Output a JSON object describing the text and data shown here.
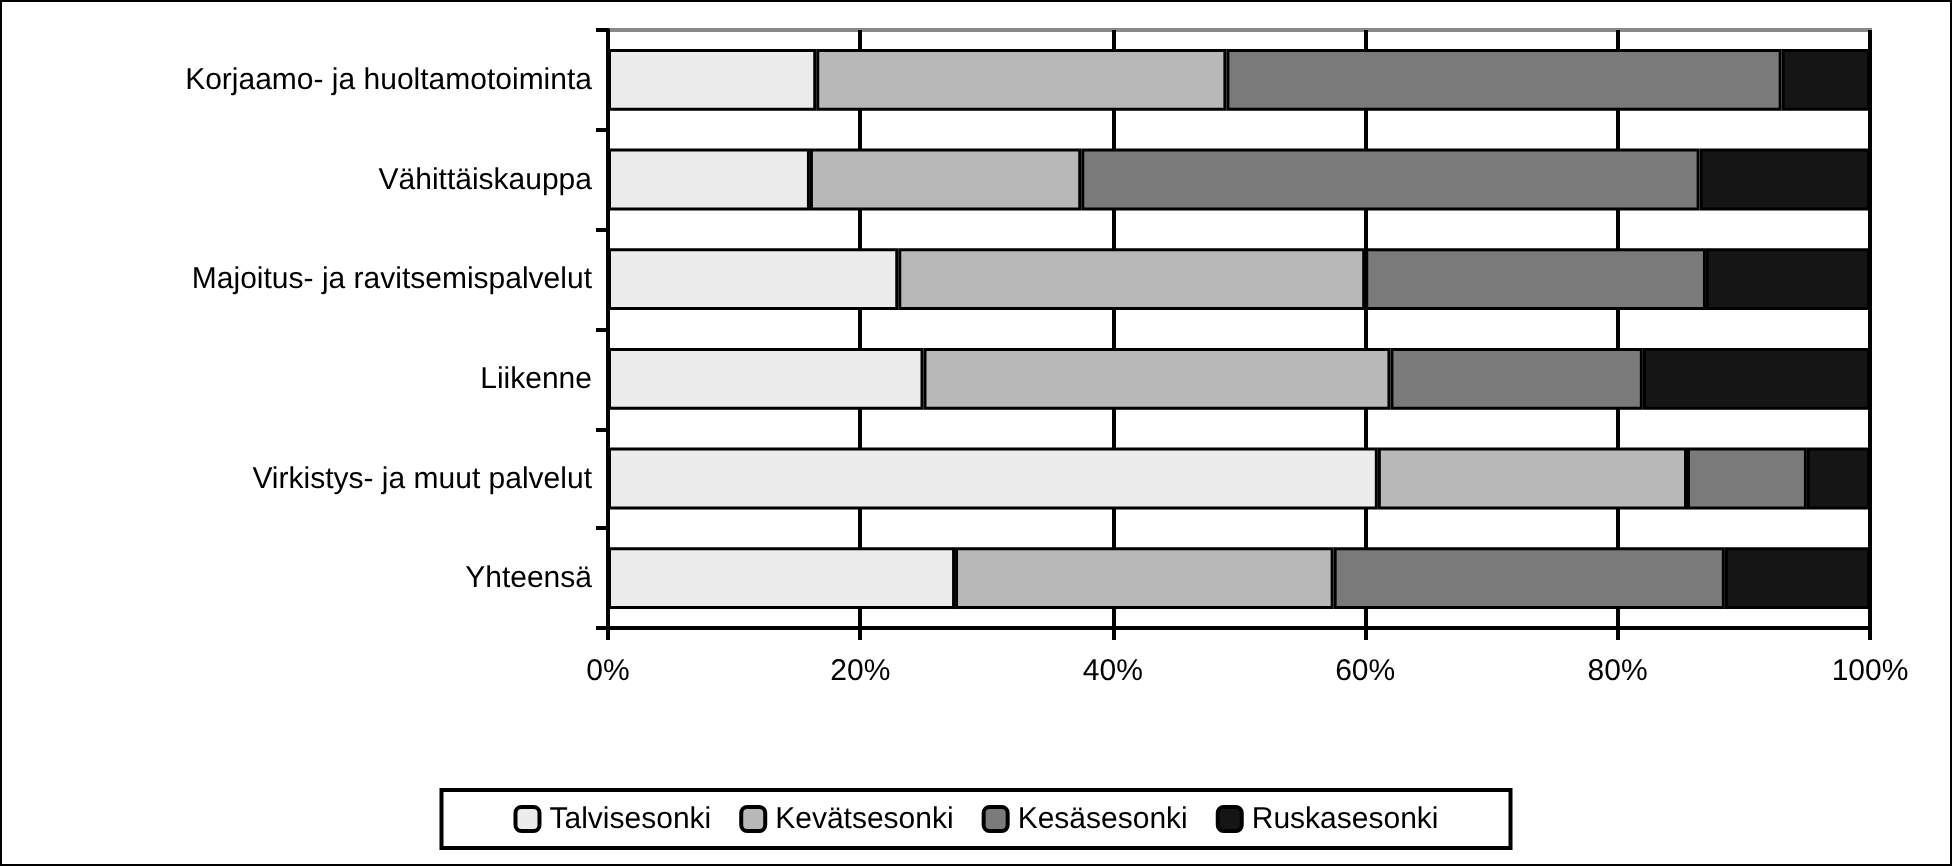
{
  "chart_data": {
    "type": "bar",
    "orientation": "horizontal",
    "stacked": true,
    "categories": [
      "Korjaamo- ja huoltamotoiminta",
      "Vähittäiskauppa",
      "Majoitus- ja ravitsemispalvelut",
      "Liikenne",
      "Virkistys- ja muut palvelut",
      "Yhteensä"
    ],
    "series": [
      {
        "name": "Talvisesonki",
        "color": "#ececec",
        "values": [
          16.5,
          16,
          23,
          25,
          61,
          27.5
        ]
      },
      {
        "name": "Kevätsesonki",
        "color": "#b8b8b8",
        "values": [
          32.5,
          21.5,
          37,
          37,
          24.5,
          30
        ]
      },
      {
        "name": "Kesäsesonki",
        "color": "#7a7a7a",
        "values": [
          44,
          49,
          27,
          20,
          9.5,
          31
        ]
      },
      {
        "name": "Ruskasesonki",
        "color": "#151515",
        "values": [
          7,
          13.5,
          13,
          18,
          5,
          11.5
        ]
      }
    ],
    "xlim": [
      0,
      100
    ],
    "xticks": [
      {
        "value": 0,
        "label": "0%"
      },
      {
        "value": 20,
        "label": "20%"
      },
      {
        "value": 40,
        "label": "40%"
      },
      {
        "value": 60,
        "label": "60%"
      },
      {
        "value": 80,
        "label": "80%"
      },
      {
        "value": 100,
        "label": "100%"
      }
    ],
    "grid": "x",
    "legend": "bottom"
  }
}
